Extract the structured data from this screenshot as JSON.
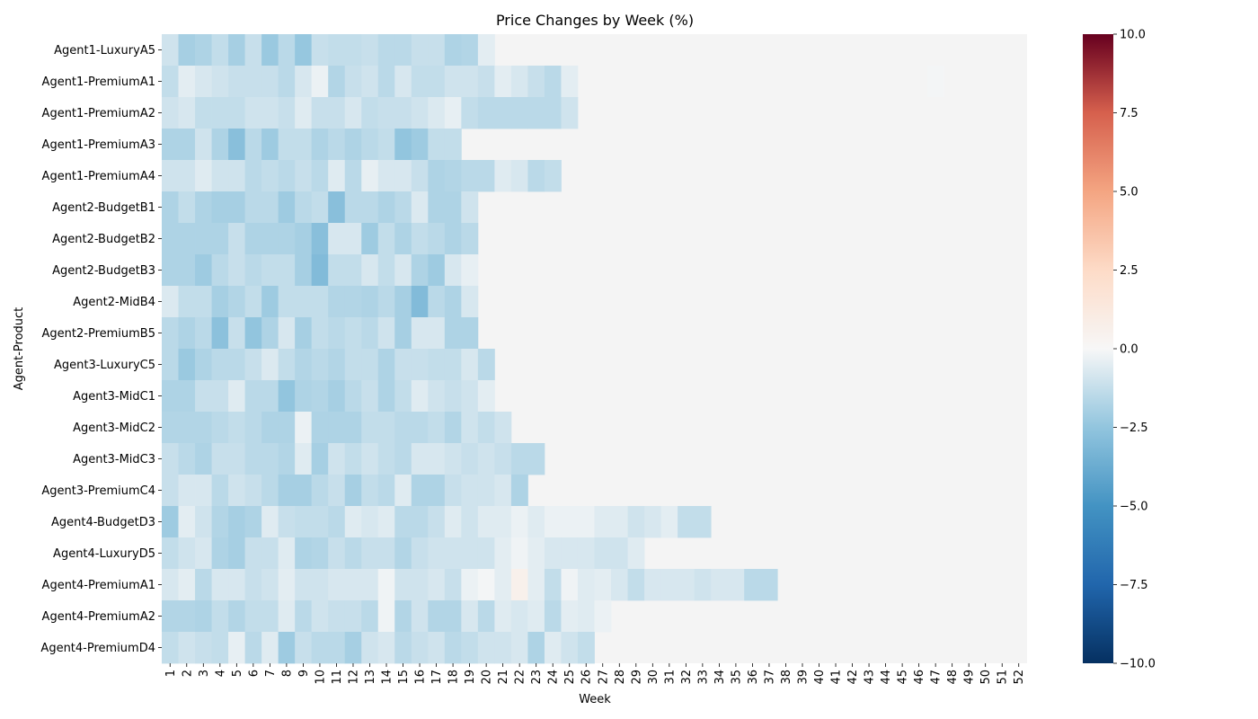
{
  "chart_data": {
    "type": "heatmap",
    "title": "Price Changes by Week (%)",
    "xlabel": "Week",
    "ylabel": "Agent-Product",
    "colormap": "RdBu_r",
    "vmin": -10,
    "vmax": 10,
    "colorbar_ticks": [
      10.0,
      7.5,
      5.0,
      2.5,
      0.0,
      -2.5,
      -5.0,
      -7.5,
      -10.0
    ],
    "colorbar_tick_labels": [
      "10.0",
      "7.5",
      "5.0",
      "2.5",
      "0.0",
      "−2.5",
      "−5.0",
      "−7.5",
      "−10.0"
    ],
    "missing_color": "#f4f4f4",
    "weeks": [
      "1",
      "2",
      "3",
      "4",
      "5",
      "6",
      "7",
      "8",
      "9",
      "10",
      "11",
      "12",
      "13",
      "14",
      "15",
      "16",
      "17",
      "18",
      "19",
      "20",
      "21",
      "22",
      "23",
      "24",
      "25",
      "26",
      "27",
      "28",
      "29",
      "30",
      "31",
      "32",
      "33",
      "34",
      "35",
      "36",
      "37",
      "38",
      "39",
      "40",
      "41",
      "42",
      "43",
      "44",
      "45",
      "46",
      "47",
      "48",
      "49",
      "50",
      "51",
      "52"
    ],
    "rows": [
      {
        "label": "Agent1-LuxuryA5",
        "values": [
          -1.0,
          -2.0,
          -1.8,
          -1.3,
          -2.0,
          -1.2,
          -2.3,
          -1.5,
          -2.4,
          -1.2,
          -1.3,
          -1.3,
          -1.2,
          -1.5,
          -1.5,
          -1.2,
          -1.2,
          -1.8,
          -1.7,
          -0.5
        ]
      },
      {
        "label": "Agent1-PremiumA1",
        "values": [
          -1.3,
          -0.5,
          -0.8,
          -1.0,
          -1.2,
          -1.2,
          -1.2,
          -1.5,
          -0.8,
          -0.3,
          -1.7,
          -1.2,
          -1.0,
          -1.5,
          -0.8,
          -1.3,
          -1.3,
          -1.0,
          -1.0,
          -1.2,
          -0.5,
          -0.8,
          -1.2,
          -1.5,
          -0.5,
          null,
          null,
          null,
          null,
          null,
          null,
          null,
          null,
          null,
          null,
          null,
          null,
          null,
          null,
          null,
          null,
          null,
          null,
          null,
          null,
          null,
          -0.1
        ]
      },
      {
        "label": "Agent1-PremiumA2",
        "values": [
          -1.0,
          -0.8,
          -1.3,
          -1.3,
          -1.3,
          -1.0,
          -1.0,
          -1.2,
          -0.6,
          -1.2,
          -1.2,
          -0.8,
          -1.3,
          -1.2,
          -1.2,
          -1.0,
          -0.7,
          -0.4,
          -1.3,
          -1.5,
          -1.5,
          -1.5,
          -1.5,
          -1.5,
          -1.0
        ]
      },
      {
        "label": "Agent1-PremiumA3",
        "values": [
          -1.8,
          -1.8,
          -1.0,
          -1.8,
          -2.8,
          -1.5,
          -2.2,
          -1.3,
          -1.3,
          -1.8,
          -1.5,
          -1.8,
          -1.5,
          -1.3,
          -2.5,
          -2.2,
          -1.3,
          -1.3,
          null
        ]
      },
      {
        "label": "Agent1-PremiumA4",
        "values": [
          -1.0,
          -1.0,
          -0.6,
          -1.0,
          -1.0,
          -1.5,
          -1.3,
          -1.5,
          -1.2,
          -1.5,
          -0.6,
          -1.5,
          -0.4,
          -0.8,
          -0.8,
          -1.2,
          -1.8,
          -1.7,
          -1.5,
          -1.5,
          -0.6,
          -0.8,
          -1.5,
          -1.3
        ]
      },
      {
        "label": "Agent2-BudgetB1",
        "values": [
          -1.8,
          -1.3,
          -1.8,
          -2.0,
          -2.0,
          -1.5,
          -1.5,
          -2.2,
          -1.5,
          -1.3,
          -2.8,
          -1.5,
          -1.5,
          -1.8,
          -1.5,
          -0.7,
          -1.8,
          -1.8,
          -1.0
        ]
      },
      {
        "label": "Agent2-BudgetB2",
        "values": [
          -1.8,
          -1.8,
          -1.8,
          -1.8,
          -1.2,
          -1.8,
          -1.8,
          -1.8,
          -2.0,
          -2.8,
          -0.8,
          -0.8,
          -2.2,
          -1.3,
          -1.8,
          -1.3,
          -1.5,
          -1.8,
          -1.5
        ]
      },
      {
        "label": "Agent2-BudgetB3",
        "values": [
          -1.8,
          -1.8,
          -2.2,
          -1.5,
          -1.2,
          -1.5,
          -1.3,
          -1.3,
          -2.0,
          -3.0,
          -1.3,
          -1.3,
          -0.8,
          -1.3,
          -0.8,
          -1.8,
          -2.2,
          -0.8,
          -0.4
        ]
      },
      {
        "label": "Agent2-MidB4",
        "values": [
          -0.7,
          -1.3,
          -1.3,
          -2.0,
          -1.7,
          -1.3,
          -2.2,
          -1.3,
          -1.3,
          -1.3,
          -1.7,
          -1.7,
          -1.8,
          -1.5,
          -2.0,
          -3.0,
          -1.5,
          -1.8,
          -0.8
        ]
      },
      {
        "label": "Agent2-PremiumB5",
        "values": [
          -1.5,
          -1.8,
          -1.5,
          -2.7,
          -1.2,
          -2.5,
          -1.8,
          -0.8,
          -2.0,
          -1.3,
          -1.5,
          -1.3,
          -1.5,
          -1.0,
          -2.0,
          -0.8,
          -0.8,
          -1.8,
          -1.8
        ]
      },
      {
        "label": "Agent3-LuxuryC5",
        "values": [
          -1.5,
          -2.3,
          -1.8,
          -1.5,
          -1.5,
          -1.2,
          -0.7,
          -1.3,
          -1.7,
          -1.5,
          -1.7,
          -1.3,
          -1.3,
          -1.8,
          -1.2,
          -1.2,
          -1.3,
          -1.3,
          -0.8,
          -1.5
        ]
      },
      {
        "label": "Agent3-MidC1",
        "values": [
          -1.8,
          -1.8,
          -1.2,
          -1.2,
          -0.6,
          -1.5,
          -1.5,
          -2.5,
          -1.8,
          -1.7,
          -2.0,
          -1.5,
          -1.2,
          -1.8,
          -1.3,
          -0.6,
          -1.0,
          -1.2,
          -1.0,
          -0.5
        ]
      },
      {
        "label": "Agent3-MidC2",
        "values": [
          -1.7,
          -1.7,
          -1.7,
          -1.5,
          -1.3,
          -1.5,
          -1.8,
          -1.8,
          -0.3,
          -1.8,
          -1.8,
          -1.8,
          -1.3,
          -1.3,
          -1.5,
          -1.5,
          -1.3,
          -1.7,
          -1.0,
          -1.3,
          -1.0
        ]
      },
      {
        "label": "Agent3-MidC3",
        "values": [
          -1.2,
          -1.5,
          -1.8,
          -1.2,
          -1.2,
          -1.5,
          -1.5,
          -1.7,
          -0.6,
          -2.0,
          -1.0,
          -1.3,
          -1.0,
          -1.3,
          -1.5,
          -0.8,
          -0.8,
          -1.0,
          -1.2,
          -1.0,
          -1.2,
          -1.5,
          -1.5
        ]
      },
      {
        "label": "Agent3-PremiumC4",
        "values": [
          -1.2,
          -0.8,
          -0.8,
          -1.5,
          -1.0,
          -1.2,
          -1.5,
          -2.0,
          -2.0,
          -1.5,
          -1.2,
          -2.0,
          -1.3,
          -1.5,
          -0.6,
          -1.8,
          -1.8,
          -1.2,
          -1.0,
          -1.0,
          -0.8,
          -1.8
        ]
      },
      {
        "label": "Agent4-BudgetD3",
        "values": [
          -2.2,
          -0.5,
          -1.0,
          -1.7,
          -2.0,
          -1.8,
          -0.6,
          -1.2,
          -1.3,
          -1.3,
          -1.5,
          -0.6,
          -0.8,
          -0.6,
          -1.5,
          -1.5,
          -1.2,
          -0.6,
          -1.0,
          -0.6,
          -0.6,
          -0.3,
          -0.6,
          -0.3,
          -0.3,
          -0.3,
          -0.6,
          -0.6,
          -1.0,
          -0.8,
          -0.5,
          -1.3,
          -1.3
        ]
      },
      {
        "label": "Agent4-LuxuryD5",
        "values": [
          -1.3,
          -1.0,
          -0.8,
          -1.8,
          -2.0,
          -1.2,
          -1.2,
          -0.6,
          -1.8,
          -1.7,
          -1.2,
          -1.5,
          -1.2,
          -1.2,
          -1.7,
          -1.2,
          -1.0,
          -1.0,
          -1.0,
          -1.0,
          -0.5,
          -0.2,
          -0.5,
          -0.8,
          -0.8,
          -0.8,
          -1.0,
          -1.0,
          -0.6
        ]
      },
      {
        "label": "Agent4-PremiumA1",
        "values": [
          -0.8,
          -0.5,
          -1.5,
          -0.8,
          -0.8,
          -1.2,
          -1.0,
          -0.5,
          -1.0,
          -1.0,
          -0.8,
          -0.8,
          -0.8,
          -0.2,
          -1.0,
          -1.0,
          -0.8,
          -1.2,
          -0.3,
          -0.1,
          -0.5,
          0.6,
          -0.5,
          -1.3,
          -0.2,
          -0.6,
          -0.5,
          -0.8,
          -1.3,
          -0.8,
          -0.8,
          -0.8,
          -1.0,
          -0.8,
          -0.8,
          -1.5,
          -1.5
        ]
      },
      {
        "label": "Agent4-PremiumA2",
        "values": [
          -1.7,
          -1.7,
          -1.8,
          -1.3,
          -1.7,
          -1.3,
          -1.3,
          -0.6,
          -1.5,
          -1.0,
          -1.2,
          -1.2,
          -1.5,
          -0.2,
          -1.7,
          -1.0,
          -1.7,
          -1.7,
          -0.8,
          -1.5,
          -0.6,
          -0.8,
          -0.6,
          -1.5,
          -0.5,
          -0.6,
          -0.3
        ]
      },
      {
        "label": "Agent4-PremiumD4",
        "values": [
          -1.3,
          -1.0,
          -1.2,
          -1.3,
          -0.4,
          -1.5,
          -0.6,
          -2.2,
          -1.2,
          -1.5,
          -1.5,
          -2.0,
          -1.0,
          -0.8,
          -1.5,
          -1.2,
          -1.0,
          -1.5,
          -1.3,
          -1.0,
          -1.0,
          -0.8,
          -1.8,
          -0.6,
          -1.0,
          -1.3
        ]
      }
    ]
  }
}
